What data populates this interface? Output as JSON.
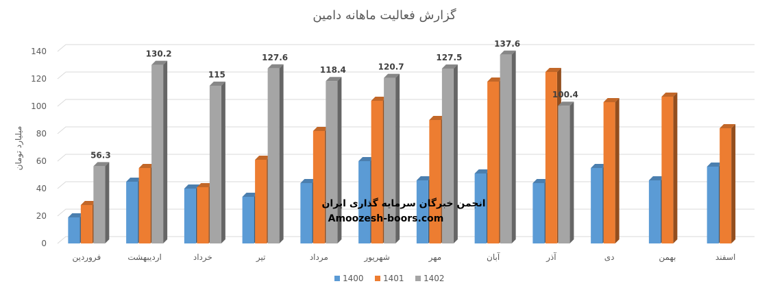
{
  "chart_data": {
    "type": "bar",
    "title": "گزارش فعالیت ماهانه دامین",
    "ylabel": "میلیارد تومان",
    "xlabel": "",
    "ylim": [
      0,
      140
    ],
    "yticks": [
      0,
      20,
      40,
      60,
      80,
      100,
      120,
      140
    ],
    "grid": true,
    "legend_position": "bottom",
    "categories": [
      "فروردین",
      "اردیبهشت",
      "خرداد",
      "تیر",
      "مرداد",
      "شهریور",
      "مهر",
      "آبان",
      "آذر",
      "دی",
      "بهمن",
      "اسفند"
    ],
    "series": [
      {
        "name": "1400",
        "color": "#5B9BD5",
        "values": [
          19,
          45,
          40,
          34,
          44,
          60,
          46,
          51,
          44,
          55,
          46,
          56
        ]
      },
      {
        "name": "1401",
        "color": "#ED7D31",
        "values": [
          28,
          55,
          41,
          61,
          82,
          104,
          90,
          118,
          125,
          103,
          107,
          84
        ]
      },
      {
        "name": "1402",
        "color": "#A5A5A5",
        "values": [
          56.3,
          130.2,
          115,
          127.6,
          118.4,
          120.7,
          127.5,
          137.6,
          100.4,
          null,
          null,
          null
        ]
      }
    ],
    "data_labels": {
      "1402": [
        "56.3",
        "130.2",
        "115",
        "127.6",
        "118.4",
        "120.7",
        "127.5",
        "137.6",
        "100.4"
      ]
    }
  },
  "watermark": {
    "line1": "انجمن خبرگان سرمایه گذاری ایران",
    "line2": "Amoozesh-boors.com"
  }
}
